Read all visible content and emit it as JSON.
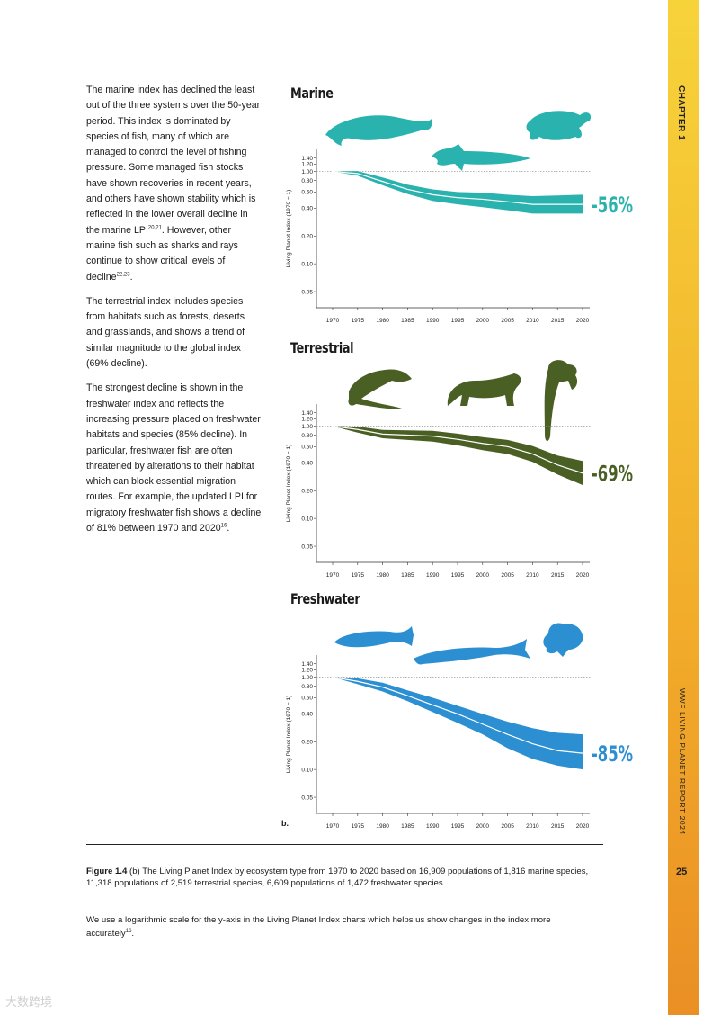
{
  "sidebar": {
    "chapter": "CHAPTER 1",
    "report": "WWF LIVING PLANET REPORT 2024",
    "page": "25"
  },
  "body": {
    "p1a": "The marine index has declined the least out of the three systems over the 50-year period. This index is dominated by species of fish, many of which are managed to control the level of fishing pressure. Some managed fish stocks have shown recoveries in recent years, and others have shown stability which is reflected in the lower overall decline in the marine LPI",
    "p1s1": "20,21",
    "p1b": ". However, other marine fish such as sharks and rays continue to show critical levels of decline",
    "p1s2": "22,23",
    "p1c": ".",
    "p2": "The terrestrial index includes species from habitats such as forests, deserts and grasslands, and shows a trend of similar magnitude to the global index (69% decline).",
    "p3a": "The strongest decline is shown in the freshwater index and reflects the increasing pressure placed on freshwater habitats and species (85% decline). In particular, freshwater fish are often threatened by alterations to their habitat which can block essential migration routes. For example, the updated LPI for migratory freshwater fish shows a decline of 81% between 1970 and 2020",
    "p3s": "16",
    "p3b": "."
  },
  "b_label": "b.",
  "caption": {
    "label": "Figure 1.4",
    "text": " (b) The Living Planet Index by ecosystem type from 1970 to 2020 based on 16,909 populations of 1,816 marine species, 11,318 populations of 2,519 terrestrial species, 6,609 populations of 1,472 freshwater species."
  },
  "note": {
    "text": "We use a logarithmic scale for the y-axis in the Living Planet Index charts which helps us show changes in the index more accurately",
    "sup": "16",
    "end": "."
  },
  "watermark": "大数跨境",
  "chart_data": [
    {
      "type": "area",
      "title": "Marine",
      "ylabel": "Living Planet Index (1970 = 1)",
      "yscale": "log",
      "yticks": [
        "1.40",
        "1.20",
        "1.00",
        "0.80",
        "0.60",
        "0.40",
        "0.20",
        "0.10",
        "0.05"
      ],
      "xticks": [
        "1970",
        "1975",
        "1980",
        "1985",
        "1990",
        "1995",
        "2000",
        "2005",
        "2010",
        "2015",
        "2020"
      ],
      "change_label": "-56%",
      "color": "#2ab3ae",
      "x": [
        1970,
        1975,
        1980,
        1985,
        1990,
        1995,
        2000,
        2005,
        2010,
        2015,
        2020
      ],
      "value": [
        1.0,
        0.95,
        0.78,
        0.64,
        0.56,
        0.52,
        0.5,
        0.47,
        0.44,
        0.44,
        0.44
      ],
      "lower": [
        1.0,
        0.9,
        0.71,
        0.57,
        0.48,
        0.44,
        0.41,
        0.38,
        0.35,
        0.35,
        0.35
      ],
      "upper": [
        1.0,
        1.01,
        0.86,
        0.72,
        0.64,
        0.6,
        0.59,
        0.56,
        0.54,
        0.55,
        0.56
      ],
      "icons": [
        "whale-icon",
        "shark-icon",
        "turtle-icon"
      ]
    },
    {
      "type": "area",
      "title": "Terrestrial",
      "ylabel": "Living Planet Index (1970 = 1)",
      "yscale": "log",
      "yticks": [
        "1.40",
        "1.20",
        "1.00",
        "0.80",
        "0.60",
        "0.40",
        "0.20",
        "0.10",
        "0.05"
      ],
      "xticks": [
        "1970",
        "1975",
        "1980",
        "1985",
        "1990",
        "1995",
        "2000",
        "2005",
        "2010",
        "2015",
        "2020"
      ],
      "change_label": "-69%",
      "color": "#4a5f24",
      "x": [
        1970,
        1975,
        1980,
        1985,
        1990,
        1995,
        2000,
        2005,
        2010,
        2015,
        2020
      ],
      "value": [
        1.0,
        0.92,
        0.82,
        0.8,
        0.78,
        0.72,
        0.65,
        0.6,
        0.5,
        0.38,
        0.31
      ],
      "lower": [
        1.0,
        0.85,
        0.74,
        0.71,
        0.68,
        0.62,
        0.55,
        0.5,
        0.41,
        0.3,
        0.23
      ],
      "upper": [
        1.0,
        0.99,
        0.91,
        0.9,
        0.89,
        0.83,
        0.76,
        0.71,
        0.61,
        0.48,
        0.42
      ],
      "icons": [
        "iguana-icon",
        "jaguar-icon",
        "monkey-icon"
      ]
    },
    {
      "type": "area",
      "title": "Freshwater",
      "ylabel": "Living Planet Index (1970 = 1)",
      "yscale": "log",
      "yticks": [
        "1.40",
        "1.20",
        "1.00",
        "0.80",
        "0.60",
        "0.40",
        "0.20",
        "0.10",
        "0.05"
      ],
      "xticks": [
        "1970",
        "1975",
        "1980",
        "1985",
        "1990",
        "1995",
        "2000",
        "2005",
        "2010",
        "2015",
        "2020"
      ],
      "change_label": "-85%",
      "color": "#2b8fd2",
      "x": [
        1970,
        1975,
        1980,
        1985,
        1990,
        1995,
        2000,
        2005,
        2010,
        2015,
        2020
      ],
      "value": [
        1.0,
        0.9,
        0.78,
        0.63,
        0.5,
        0.4,
        0.31,
        0.24,
        0.19,
        0.16,
        0.15
      ],
      "lower": [
        1.0,
        0.84,
        0.7,
        0.55,
        0.42,
        0.32,
        0.24,
        0.17,
        0.13,
        0.11,
        0.1
      ],
      "upper": [
        1.0,
        0.97,
        0.87,
        0.72,
        0.6,
        0.49,
        0.4,
        0.33,
        0.28,
        0.25,
        0.24
      ],
      "icons": [
        "salmon-icon",
        "sturgeon-icon",
        "frog-icon"
      ]
    }
  ]
}
